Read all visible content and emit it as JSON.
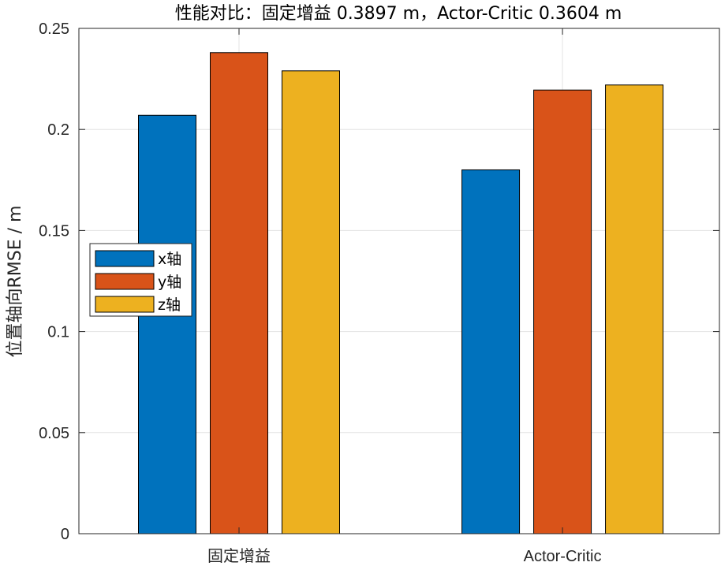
{
  "chart_data": {
    "type": "bar",
    "title": "性能对比：固定增益 0.3897 m，Actor-Critic 0.3604 m",
    "xlabel": "",
    "ylabel": "位置轴向RMSE / m",
    "categories": [
      "固定增益",
      "Actor-Critic"
    ],
    "series": [
      {
        "name": "x轴",
        "color": "#0072BD",
        "values": [
          0.207,
          0.18
        ]
      },
      {
        "name": "y轴",
        "color": "#D95319",
        "values": [
          0.238,
          0.2195
        ]
      },
      {
        "name": "z轴",
        "color": "#EDB120",
        "values": [
          0.229,
          0.222
        ]
      }
    ],
    "ylim": [
      0,
      0.25
    ],
    "yticks": [
      0,
      0.05,
      0.1,
      0.15,
      0.2,
      0.25
    ],
    "ytick_labels": [
      "0",
      "0.05",
      "0.1",
      "0.15",
      "0.2",
      "0.25"
    ],
    "grid": true,
    "legend_position": "left, mid-height"
  }
}
